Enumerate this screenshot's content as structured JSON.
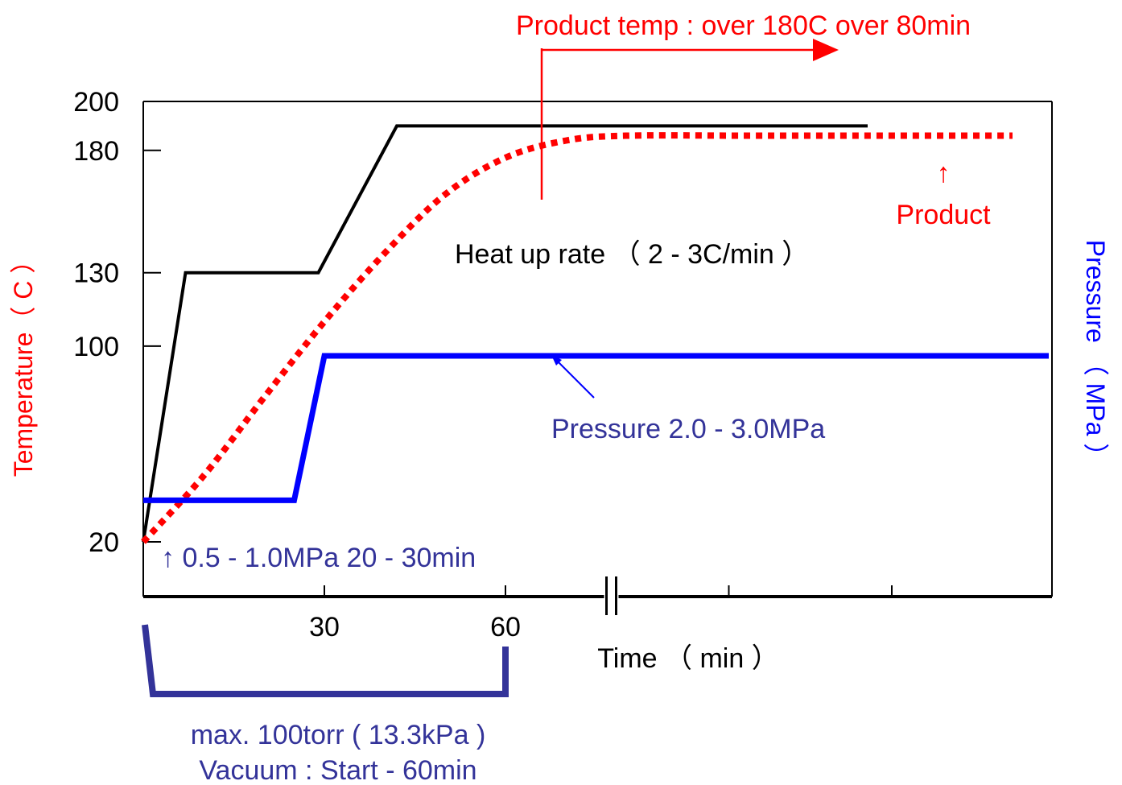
{
  "chart_data": {
    "type": "line",
    "xlabel": "Time （ min ）",
    "ylabel_left": "Temperature（ C ）",
    "ylabel_right": "Pressure （ MPa ）",
    "ylim": [
      20,
      200
    ],
    "xlim": [
      0,
      150
    ],
    "x_break_after": 77,
    "y_ticks": [
      {
        "value": 200,
        "label": "200"
      },
      {
        "value": 180,
        "label": "180"
      },
      {
        "value": 130,
        "label": "130"
      },
      {
        "value": 100,
        "label": "100"
      },
      {
        "value": 20,
        "label": "20"
      }
    ],
    "x_ticks": [
      {
        "value": 30,
        "label": "30"
      },
      {
        "value": 60,
        "label": "60"
      },
      {
        "value": 97,
        "label": ""
      },
      {
        "value": 124,
        "label": ""
      }
    ],
    "series": [
      {
        "name": "",
        "color": "#000000",
        "style": "solid",
        "x": [
          0,
          7,
          29,
          42,
          120
        ],
        "y": [
          20,
          130,
          130,
          190,
          190
        ]
      },
      {
        "name": "Product",
        "color": "#ff0000",
        "style": "dotted",
        "x": [
          0,
          10,
          20,
          30,
          40,
          50,
          60,
          70,
          80,
          100,
          120,
          144
        ],
        "y": [
          20,
          47,
          79,
          110,
          138,
          162,
          177,
          184,
          186,
          186,
          186,
          186
        ]
      },
      {
        "name": "Pressure",
        "color": "#0000ff",
        "style": "solid",
        "x": [
          0,
          25,
          30,
          150
        ],
        "y": [
          37,
          37,
          96,
          96
        ]
      }
    ],
    "annotations": {
      "product_temp": "Product temp : over 180C   over  80min",
      "heat_up": "Heat up rate （ 2 - 3C/min ）",
      "product_arrow": "↑",
      "product_label": "Product",
      "pressure_label": "Pressure  2.0 - 3.0MPa",
      "low_pressure": "↑ 0.5 - 1.0MPa  20 - 30min",
      "vacuum_line1": "max. 100torr ( 13.3kPa )",
      "vacuum_line2": "Vacuum : Start - 60min"
    },
    "vacuum_range": [
      0,
      60
    ],
    "product_temp_marker_x": 66,
    "colors": {
      "red": "#ff0000",
      "blue_text": "#333399",
      "blue_line": "#0000ff",
      "bracket": "#333399"
    }
  }
}
